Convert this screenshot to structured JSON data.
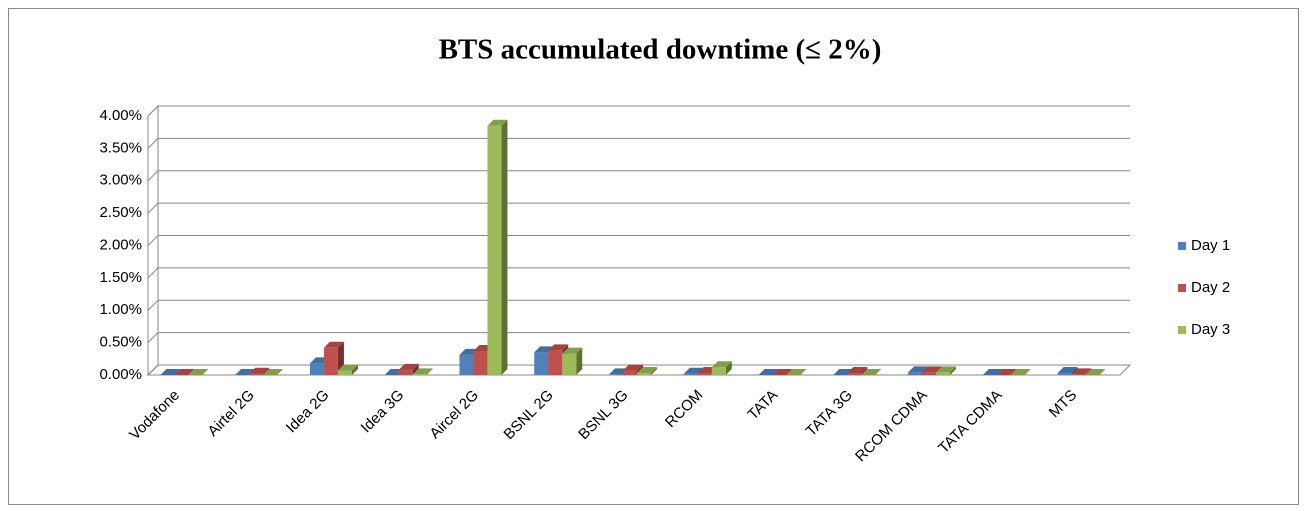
{
  "chart_data": {
    "type": "bar3d",
    "title": "BTS accumulated downtime (≤ 2%)",
    "categories": [
      "Vodafone",
      "Airtel 2G",
      "Idea 2G",
      "Idea 3G",
      "Aircel 2G",
      "BSNL 2G",
      "BSNL 3G",
      "RCOM",
      "TATA",
      "TATA 3G",
      "RCOM CDMA",
      "TATA CDMA",
      "MTS"
    ],
    "series": [
      {
        "name": "Day 1",
        "color": "#4f81bd",
        "values": [
          0,
          0,
          0.18,
          0,
          0.31,
          0.35,
          0.01,
          0.02,
          0,
          0,
          0.04,
          0,
          0.03
        ]
      },
      {
        "name": "Day 2",
        "color": "#c0504d",
        "values": [
          0,
          0.02,
          0.42,
          0.08,
          0.37,
          0.38,
          0.07,
          0.03,
          0,
          0.03,
          0.04,
          0,
          0.01
        ]
      },
      {
        "name": "Day 3",
        "color": "#9bbb59",
        "values": [
          0,
          0,
          0.07,
          0.01,
          3.85,
          0.33,
          0.03,
          0.12,
          0,
          0,
          0.04,
          0,
          0
        ]
      }
    ],
    "ylim": [
      0,
      4
    ],
    "yticks": [
      {
        "value": 0,
        "label": "0.00%"
      },
      {
        "value": 0.5,
        "label": "0.50%"
      },
      {
        "value": 1,
        "label": "1.00%"
      },
      {
        "value": 1.5,
        "label": "1.50%"
      },
      {
        "value": 2,
        "label": "2.00%"
      },
      {
        "value": 2.5,
        "label": "2.50%"
      },
      {
        "value": 3,
        "label": "3.00%"
      },
      {
        "value": 3.5,
        "label": "3.50%"
      },
      {
        "value": 4,
        "label": "4.00%"
      }
    ],
    "grid": true,
    "legend": "right"
  }
}
